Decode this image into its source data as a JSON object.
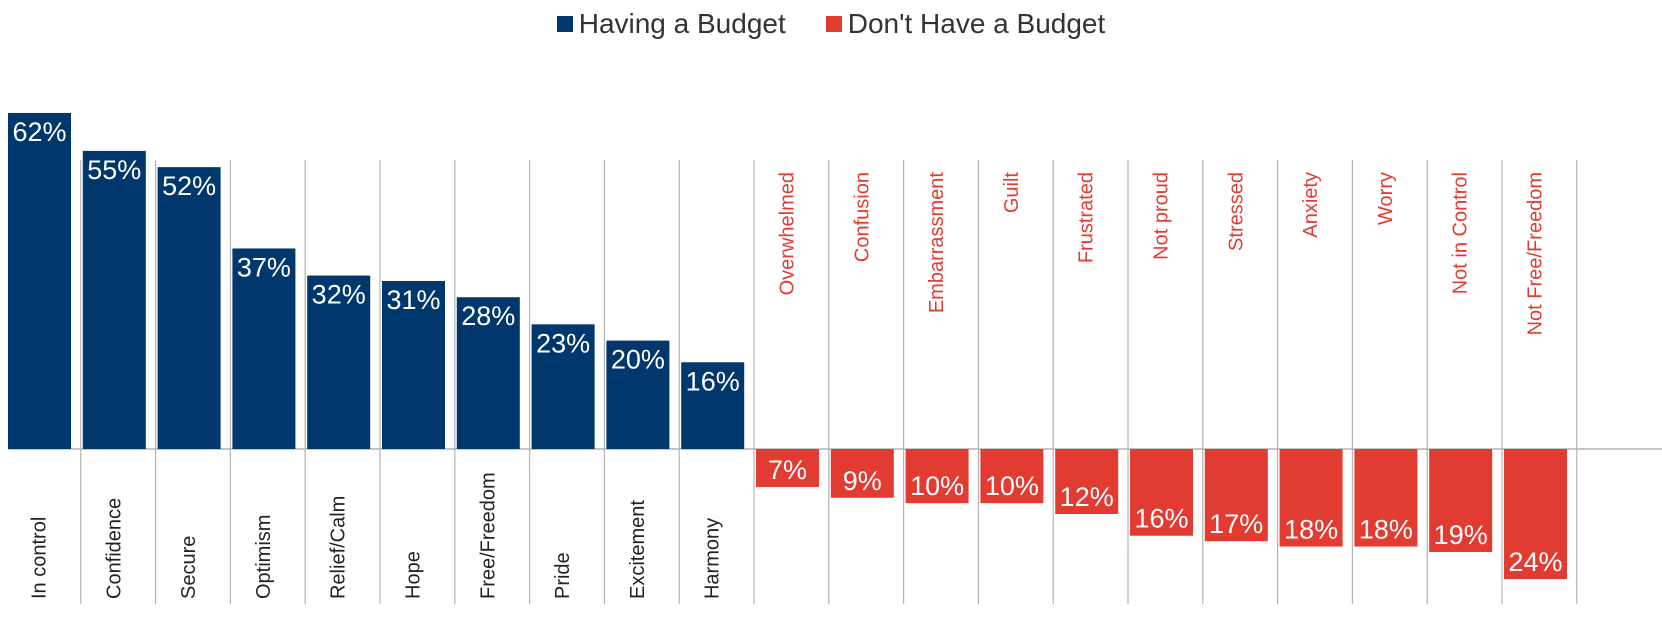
{
  "chart_data": {
    "type": "bar",
    "layout": "diverging",
    "legend_position": "top-center",
    "grid": false,
    "colors": {
      "positive": "#00376d",
      "negative": "#e23b31",
      "gridline": "#b3b3b3"
    },
    "series": [
      {
        "name": "Having a Budget",
        "direction": "up",
        "categories": [
          "In control",
          "Confidence",
          "Secure",
          "Optimism",
          "Relief/Calm",
          "Hope",
          "Free/Freedom",
          "Pride",
          "Excitement",
          "Harmony"
        ],
        "values": [
          62,
          55,
          52,
          37,
          32,
          31,
          28,
          23,
          20,
          16
        ],
        "labels": [
          "62%",
          "55%",
          "52%",
          "37%",
          "32%",
          "31%",
          "28%",
          "23%",
          "20%",
          "16%"
        ]
      },
      {
        "name": "Don't Have a Budget",
        "direction": "down",
        "categories": [
          "Overwhelmed",
          "Confusion",
          "Embarrassment",
          "Guilt",
          "Frustrated",
          "Not proud",
          "Stressed",
          "Anxiety",
          "Worry",
          "Not in Control",
          "Not Free/Freedom"
        ],
        "values": [
          7,
          9,
          10,
          10,
          12,
          16,
          17,
          18,
          18,
          19,
          24
        ],
        "labels": [
          "7%",
          "9%",
          "10%",
          "10%",
          "12%",
          "16%",
          "17%",
          "18%",
          "18%",
          "19%",
          "24%"
        ]
      }
    ]
  }
}
